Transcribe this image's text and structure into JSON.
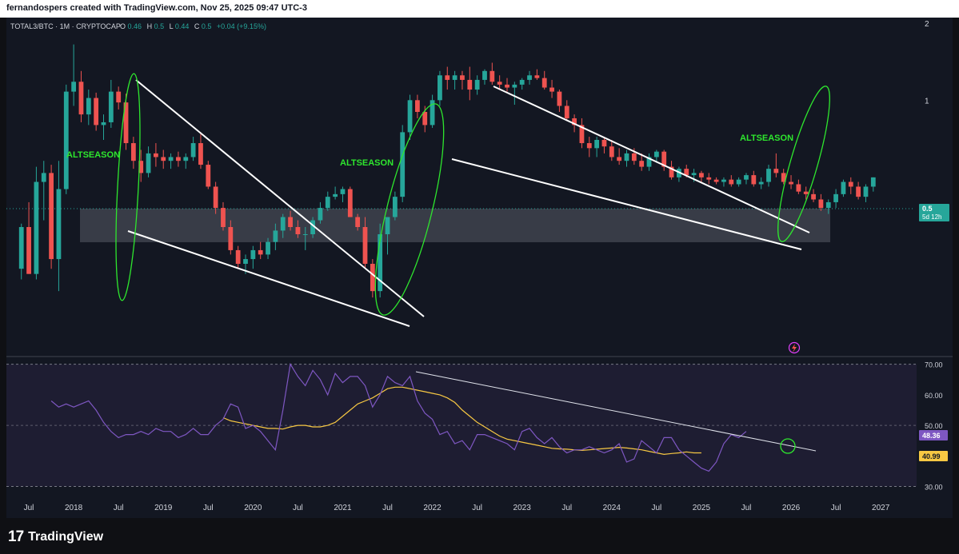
{
  "header": {
    "attribution": "fernandospers created with TradingView.com, Nov 25, 2025 09:47 UTC-3"
  },
  "legend": {
    "symbol": "TOTAL3/BTC · 1M · CRYPTOCAP",
    "o_label": "O",
    "o_value": "0.46",
    "h_label": "H",
    "h_value": "0.5",
    "l_label": "L",
    "l_value": "0.44",
    "c_label": "C",
    "c_value": "0.5",
    "change": "+0.04 (+9.15%)"
  },
  "price_badge": {
    "value": "0.5",
    "countdown": "5d 12h"
  },
  "annotations": [
    "ALTSEASON",
    "ALTSEASON",
    "ALTSEASON"
  ],
  "rsi_badges": {
    "rsi": "48.36",
    "ma": "40.99"
  },
  "brand": {
    "logo": "17",
    "name": "TradingView"
  },
  "colors": {
    "up": "#26a69a",
    "down": "#ef5350",
    "rsi": "#7e57c2",
    "rsi_ma": "#f7c843",
    "annotation": "#2ee62e",
    "background": "#131722"
  },
  "chart_data": [
    {
      "type": "candlestick",
      "title": "TOTAL3/BTC · 1M · CRYPTOCAP",
      "y_scale": "log",
      "ylim": [
        0.1,
        2.1
      ],
      "y_ticks": [
        "2",
        "1"
      ],
      "x_ticks": [
        "Jul",
        "2018",
        "Jul",
        "2019",
        "Jul",
        "2020",
        "Jul",
        "2021",
        "Jul",
        "2022",
        "Jul",
        "2023",
        "Jul",
        "2024",
        "Jul",
        "2025",
        "Jul",
        "2026",
        "Jul",
        "2027"
      ],
      "x_range": [
        2017.25,
        2027.4
      ],
      "start": 2017.417,
      "step": 0.08333,
      "candles": [
        [
          0.22,
          0.33,
          0.2,
          0.32
        ],
        [
          0.32,
          0.4,
          0.21,
          0.21
        ],
        [
          0.21,
          0.55,
          0.2,
          0.48
        ],
        [
          0.48,
          0.58,
          0.34,
          0.52
        ],
        [
          0.52,
          0.56,
          0.22,
          0.24
        ],
        [
          0.24,
          0.58,
          0.18,
          0.45
        ],
        [
          0.45,
          1.15,
          0.43,
          1.08
        ],
        [
          1.08,
          1.65,
          0.95,
          1.18
        ],
        [
          1.18,
          1.3,
          0.82,
          0.88
        ],
        [
          0.88,
          1.1,
          0.8,
          1.02
        ],
        [
          1.02,
          1.07,
          0.76,
          0.8
        ],
        [
          0.8,
          0.88,
          0.7,
          0.82
        ],
        [
          0.82,
          1.2,
          0.78,
          1.08
        ],
        [
          1.08,
          1.13,
          0.92,
          0.98
        ],
        [
          0.98,
          1.06,
          0.64,
          0.68
        ],
        [
          0.68,
          0.72,
          0.54,
          0.58
        ],
        [
          0.58,
          0.64,
          0.48,
          0.52
        ],
        [
          0.52,
          0.66,
          0.5,
          0.62
        ],
        [
          0.62,
          0.68,
          0.55,
          0.6
        ],
        [
          0.6,
          0.64,
          0.54,
          0.58
        ],
        [
          0.58,
          0.62,
          0.54,
          0.6
        ],
        [
          0.6,
          0.63,
          0.55,
          0.58
        ],
        [
          0.58,
          0.62,
          0.54,
          0.6
        ],
        [
          0.6,
          0.72,
          0.58,
          0.68
        ],
        [
          0.68,
          0.75,
          0.54,
          0.56
        ],
        [
          0.56,
          0.58,
          0.45,
          0.46
        ],
        [
          0.46,
          0.48,
          0.36,
          0.38
        ],
        [
          0.38,
          0.4,
          0.31,
          0.32
        ],
        [
          0.32,
          0.34,
          0.25,
          0.26
        ],
        [
          0.26,
          0.27,
          0.22,
          0.23
        ],
        [
          0.23,
          0.25,
          0.21,
          0.24
        ],
        [
          0.24,
          0.27,
          0.22,
          0.26
        ],
        [
          0.26,
          0.28,
          0.24,
          0.25
        ],
        [
          0.25,
          0.29,
          0.24,
          0.28
        ],
        [
          0.28,
          0.33,
          0.26,
          0.31
        ],
        [
          0.31,
          0.36,
          0.29,
          0.35
        ],
        [
          0.35,
          0.37,
          0.31,
          0.32
        ],
        [
          0.32,
          0.34,
          0.29,
          0.3
        ],
        [
          0.3,
          0.32,
          0.26,
          0.3
        ],
        [
          0.3,
          0.35,
          0.29,
          0.34
        ],
        [
          0.34,
          0.4,
          0.33,
          0.38
        ],
        [
          0.38,
          0.44,
          0.37,
          0.42
        ],
        [
          0.42,
          0.46,
          0.41,
          0.43
        ],
        [
          0.43,
          0.46,
          0.4,
          0.45
        ],
        [
          0.45,
          0.46,
          0.35,
          0.35
        ],
        [
          0.35,
          0.36,
          0.31,
          0.32
        ],
        [
          0.32,
          0.35,
          0.22,
          0.23
        ],
        [
          0.23,
          0.24,
          0.17,
          0.18
        ],
        [
          0.18,
          0.33,
          0.17,
          0.3
        ],
        [
          0.3,
          0.35,
          0.25,
          0.35
        ],
        [
          0.35,
          0.44,
          0.34,
          0.42
        ],
        [
          0.42,
          0.8,
          0.4,
          0.75
        ],
        [
          0.75,
          1.05,
          0.7,
          1.0
        ],
        [
          1.0,
          1.05,
          0.85,
          0.9
        ],
        [
          0.9,
          0.95,
          0.75,
          0.8
        ],
        [
          0.8,
          1.05,
          0.78,
          1.0
        ],
        [
          1.0,
          1.3,
          0.95,
          1.25
        ],
        [
          1.25,
          1.35,
          1.1,
          1.2
        ],
        [
          1.2,
          1.3,
          1.1,
          1.25
        ],
        [
          1.25,
          1.3,
          1.1,
          1.2
        ],
        [
          1.2,
          1.35,
          1.0,
          1.1
        ],
        [
          1.1,
          1.25,
          1.05,
          1.2
        ],
        [
          1.2,
          1.32,
          1.15,
          1.3
        ],
        [
          1.3,
          1.4,
          1.15,
          1.18
        ],
        [
          1.18,
          1.25,
          1.1,
          1.15
        ],
        [
          1.15,
          1.22,
          1.08,
          1.12
        ],
        [
          1.12,
          1.18,
          0.96,
          1.15
        ],
        [
          1.15,
          1.22,
          1.1,
          1.2
        ],
        [
          1.2,
          1.3,
          1.15,
          1.25
        ],
        [
          1.25,
          1.32,
          1.2,
          1.22
        ],
        [
          1.22,
          1.3,
          1.1,
          1.12
        ],
        [
          1.12,
          1.2,
          1.02,
          1.08
        ],
        [
          1.08,
          1.1,
          0.9,
          0.95
        ],
        [
          0.95,
          1.0,
          0.83,
          0.85
        ],
        [
          0.85,
          0.88,
          0.75,
          0.8
        ],
        [
          0.8,
          0.85,
          0.65,
          0.68
        ],
        [
          0.68,
          0.72,
          0.6,
          0.65
        ],
        [
          0.65,
          0.72,
          0.6,
          0.7
        ],
        [
          0.7,
          0.72,
          0.62,
          0.66
        ],
        [
          0.66,
          0.7,
          0.58,
          0.6
        ],
        [
          0.6,
          0.65,
          0.56,
          0.58
        ],
        [
          0.58,
          0.64,
          0.55,
          0.62
        ],
        [
          0.62,
          0.65,
          0.56,
          0.58
        ],
        [
          0.58,
          0.62,
          0.53,
          0.55
        ],
        [
          0.55,
          0.62,
          0.53,
          0.6
        ],
        [
          0.6,
          0.64,
          0.57,
          0.63
        ],
        [
          0.63,
          0.64,
          0.53,
          0.55
        ],
        [
          0.55,
          0.58,
          0.49,
          0.5
        ],
        [
          0.5,
          0.55,
          0.48,
          0.54
        ],
        [
          0.54,
          0.56,
          0.5,
          0.51
        ],
        [
          0.51,
          0.54,
          0.48,
          0.52
        ],
        [
          0.52,
          0.53,
          0.48,
          0.5
        ],
        [
          0.5,
          0.52,
          0.47,
          0.49
        ],
        [
          0.49,
          0.5,
          0.47,
          0.48
        ],
        [
          0.48,
          0.5,
          0.46,
          0.49
        ],
        [
          0.49,
          0.51,
          0.46,
          0.47
        ],
        [
          0.47,
          0.5,
          0.46,
          0.49
        ],
        [
          0.49,
          0.52,
          0.47,
          0.51
        ],
        [
          0.51,
          0.53,
          0.46,
          0.47
        ],
        [
          0.47,
          0.5,
          0.45,
          0.48
        ],
        [
          0.48,
          0.56,
          0.46,
          0.54
        ],
        [
          0.54,
          0.62,
          0.5,
          0.52
        ],
        [
          0.52,
          0.54,
          0.47,
          0.48
        ],
        [
          0.48,
          0.51,
          0.45,
          0.47
        ],
        [
          0.47,
          0.49,
          0.43,
          0.44
        ],
        [
          0.44,
          0.46,
          0.41,
          0.43
        ],
        [
          0.43,
          0.45,
          0.4,
          0.41
        ],
        [
          0.41,
          0.43,
          0.37,
          0.38
        ],
        [
          0.38,
          0.41,
          0.36,
          0.4
        ],
        [
          0.4,
          0.45,
          0.38,
          0.43
        ],
        [
          0.43,
          0.49,
          0.42,
          0.48
        ],
        [
          0.48,
          0.5,
          0.43,
          0.46
        ],
        [
          0.46,
          0.48,
          0.41,
          0.42
        ],
        [
          0.42,
          0.47,
          0.4,
          0.46
        ],
        [
          0.46,
          0.5,
          0.44,
          0.5
        ]
      ]
    },
    {
      "type": "line",
      "title": "RSI",
      "ylim": [
        27,
        72
      ],
      "y_ticks": [
        70,
        60,
        50,
        40,
        30
      ],
      "start": 2017.75,
      "step": 0.08333,
      "series": [
        {
          "values": [
            58,
            56,
            57,
            56,
            57,
            58,
            55,
            51,
            48,
            46,
            47,
            47,
            48,
            47,
            49,
            48,
            48,
            46,
            47,
            49,
            47,
            47,
            50,
            52,
            57,
            56,
            49,
            50,
            48,
            45,
            42,
            55,
            70,
            66,
            63,
            68,
            65,
            60,
            67,
            64,
            66,
            66,
            63,
            56,
            60,
            66,
            64,
            63,
            66,
            58,
            54,
            52,
            47,
            48,
            44,
            45,
            42,
            47,
            47,
            46,
            45,
            44,
            42,
            48,
            49,
            46,
            44,
            46,
            43,
            41,
            42,
            42,
            43,
            42,
            41,
            42,
            44,
            38,
            39,
            45,
            43,
            41,
            46,
            46,
            42,
            40,
            38,
            36,
            35,
            38,
            44,
            47,
            46,
            48
          ]
        },
        {
          "name": "",
          "start": 2019.667,
          "values": [
            52.5,
            51.5,
            51.0,
            50.5,
            50.0,
            49.5,
            49.0,
            49.0,
            48.8,
            49.5,
            50.0,
            50.0,
            49.5,
            49.5,
            50.0,
            51.0,
            53.0,
            55.0,
            57.0,
            58.0,
            59.0,
            60.5,
            62.0,
            62.5,
            62.5,
            62.0,
            61.5,
            61.0,
            60.5,
            60.0,
            59.0,
            57.5,
            55.0,
            53.0,
            51.0,
            49.5,
            48.0,
            46.5,
            45.5,
            45.0,
            44.5,
            44.0,
            43.5,
            43.0,
            42.5,
            42.3,
            42.2,
            42.0,
            41.8,
            42.0,
            42.2,
            42.4,
            42.6,
            42.8,
            42.6,
            42.3,
            42.0,
            41.5,
            41.0,
            40.5,
            40.8,
            41.0,
            41.3,
            41.0,
            40.99
          ]
        }
      ]
    }
  ]
}
